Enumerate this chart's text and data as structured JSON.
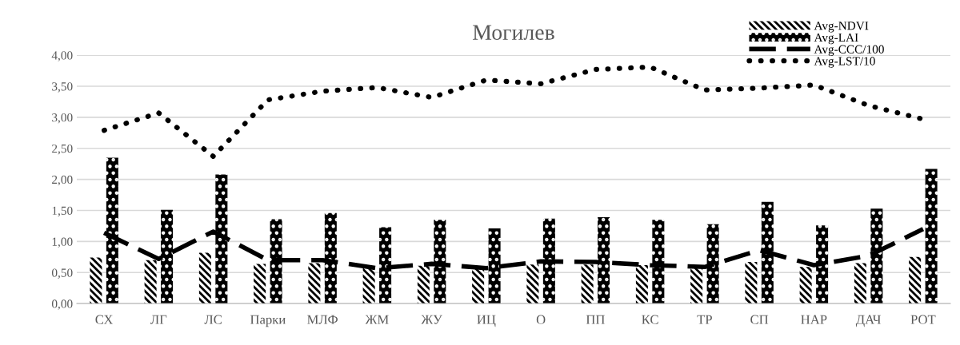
{
  "chart_data": {
    "type": "bar",
    "title": "Могилев",
    "categories": [
      "СХ",
      "ЛГ",
      "ЛС",
      "Парки",
      "МЛФ",
      "ЖМ",
      "ЖУ",
      "ИЦ",
      "О",
      "ПП",
      "КС",
      "ТР",
      "СП",
      "НАР",
      "ДАЧ",
      "РОТ"
    ],
    "series": [
      {
        "name": "Avg-NDVI",
        "color": "#000000",
        "values": [
          0.74,
          0.7,
          0.82,
          0.64,
          0.65,
          0.57,
          0.61,
          0.57,
          0.63,
          0.63,
          0.62,
          0.57,
          0.67,
          0.59,
          0.65,
          0.75
        ]
      },
      {
        "name": "Avg-LAI",
        "color": "#000000",
        "values": [
          2.35,
          1.51,
          2.08,
          1.36,
          1.46,
          1.23,
          1.35,
          1.21,
          1.37,
          1.39,
          1.35,
          1.28,
          1.64,
          1.26,
          1.53,
          2.17
        ]
      },
      {
        "name": "Avg-CCC/100",
        "type": "line",
        "line_style": "dashed",
        "color": "#000000",
        "values": [
          1.14,
          0.72,
          1.16,
          0.7,
          0.7,
          0.57,
          0.64,
          0.57,
          0.68,
          0.67,
          0.62,
          0.59,
          0.86,
          0.62,
          0.77,
          1.2
        ]
      },
      {
        "name": "Avg-LST/10",
        "type": "line",
        "line_style": "dotted",
        "color": "#000000",
        "values": [
          2.79,
          3.07,
          2.37,
          3.28,
          3.42,
          3.48,
          3.32,
          3.6,
          3.54,
          3.77,
          3.81,
          3.44,
          3.47,
          3.52,
          3.19,
          2.97
        ]
      }
    ],
    "ylim": [
      0,
      4
    ],
    "yticks": [
      {
        "value": 0,
        "label": "0,00"
      },
      {
        "value": 0.5,
        "label": "0,50"
      },
      {
        "value": 1,
        "label": "1,00"
      },
      {
        "value": 1.5,
        "label": "1,50"
      },
      {
        "value": 2,
        "label": "2,00"
      },
      {
        "value": 2.5,
        "label": "2,50"
      },
      {
        "value": 3,
        "label": "3,00"
      },
      {
        "value": 3.5,
        "label": "3,50"
      },
      {
        "value": 4,
        "label": "4,00"
      }
    ],
    "grid": "y",
    "legend": "top right"
  }
}
